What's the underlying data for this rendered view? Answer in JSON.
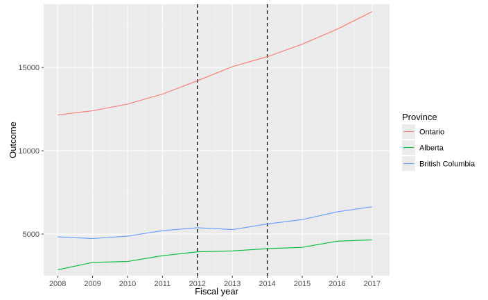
{
  "chart_data": {
    "type": "line",
    "xlabel": "Fiscal year",
    "ylabel": "Outcome",
    "x": [
      2008,
      2009,
      2010,
      2011,
      2012,
      2013,
      2014,
      2015,
      2016,
      2017
    ],
    "xlim": [
      2007.6,
      2017.5
    ],
    "ylim": [
      2500,
      18800
    ],
    "x_ticks": [
      "2008",
      "2009",
      "2010",
      "2011",
      "2012",
      "2013",
      "2014",
      "2015",
      "2016",
      "2017"
    ],
    "y_ticks": [
      {
        "value": 5000,
        "label": "5000"
      },
      {
        "value": 10000,
        "label": "10000"
      },
      {
        "value": 15000,
        "label": "15000"
      }
    ],
    "vlines": [
      2012,
      2014
    ],
    "grid": true,
    "legend": {
      "title": "Province",
      "placement": "right"
    },
    "series": [
      {
        "name": "Ontario",
        "color": "#F8766D",
        "values": [
          12150,
          12400,
          12800,
          13400,
          14200,
          15050,
          15650,
          16400,
          17300,
          18350
        ]
      },
      {
        "name": "Alberta",
        "color": "#00BA38",
        "values": [
          2850,
          3300,
          3350,
          3700,
          3930,
          3990,
          4120,
          4200,
          4570,
          4650
        ]
      },
      {
        "name": "British Columbia",
        "color": "#619CFF",
        "values": [
          4830,
          4730,
          4870,
          5200,
          5380,
          5270,
          5600,
          5870,
          6330,
          6640
        ]
      }
    ]
  }
}
